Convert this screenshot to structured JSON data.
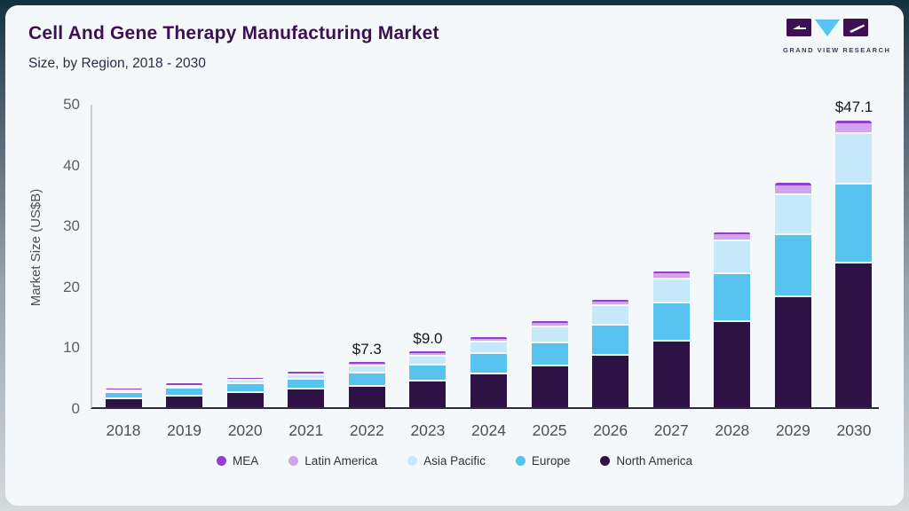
{
  "page": {
    "title": "Cell And Gene Therapy Manufacturing Market",
    "subtitle": "Size, by Region, 2018 - 2030",
    "logo_text": "GRAND VIEW RESEARCH"
  },
  "colors": {
    "card_bg": "#f5f8fb",
    "title": "#3c1053",
    "subtitle": "#2f2947",
    "axis_tick": "#5a5f66",
    "x_label": "#4c5157",
    "baseline": "#2c2c36",
    "y_axis_line": "#c9cfd7",
    "annotation": "#15151f",
    "legend_text": "#2d323b",
    "logo_purple": "#3c1053",
    "logo_blue": "#56c6f0"
  },
  "chart_data": {
    "type": "bar",
    "stacked": true,
    "title": "Cell And Gene Therapy Manufacturing Market Size, by Region, 2018 - 2030",
    "xlabel": "",
    "ylabel": "Market Size (US$B)",
    "ylim": [
      0,
      50
    ],
    "yticks": [
      0,
      10,
      20,
      30,
      40,
      50
    ],
    "grid": false,
    "legend_position": "bottom",
    "categories": [
      "2018",
      "2019",
      "2020",
      "2021",
      "2022",
      "2023",
      "2024",
      "2025",
      "2026",
      "2027",
      "2028",
      "2029",
      "2030"
    ],
    "series": [
      {
        "name": "North America",
        "color": "#2e1245",
        "values": [
          1.5,
          1.9,
          2.5,
          3.0,
          3.5,
          4.4,
          5.5,
          6.8,
          8.6,
          11.0,
          14.1,
          18.2,
          23.7
        ]
      },
      {
        "name": "Europe",
        "color": "#57c4f0",
        "values": [
          1.0,
          1.3,
          1.4,
          1.6,
          2.2,
          2.6,
          3.4,
          3.9,
          4.9,
          6.2,
          7.9,
          10.2,
          13.1
        ]
      },
      {
        "name": "Asia Pacific",
        "color": "#c6e9f9",
        "values": [
          0.25,
          0.35,
          0.55,
          0.85,
          1.15,
          1.5,
          1.85,
          2.6,
          3.2,
          4.0,
          5.4,
          6.6,
          8.2
        ]
      },
      {
        "name": "Latin America",
        "color": "#d2a4e9",
        "values": [
          0.06,
          0.08,
          0.1,
          0.15,
          0.32,
          0.38,
          0.42,
          0.55,
          0.6,
          0.8,
          1.0,
          1.5,
          1.6
        ]
      },
      {
        "name": "MEA",
        "color": "#9240cc",
        "values": [
          0.04,
          0.04,
          0.05,
          0.06,
          0.13,
          0.12,
          0.13,
          0.15,
          0.2,
          0.3,
          0.3,
          0.4,
          0.5
        ]
      }
    ],
    "totals": [
      2.85,
      3.67,
      4.6,
      5.66,
      7.3,
      9.0,
      11.3,
      14.0,
      17.5,
      22.3,
      28.7,
      36.9,
      47.1
    ],
    "annotations": [
      {
        "category": "2022",
        "text": "$7.3"
      },
      {
        "category": "2023",
        "text": "$9.0"
      },
      {
        "category": "2030",
        "text": "$47.1"
      }
    ],
    "legend": [
      {
        "label": "MEA",
        "color": "#9240cc"
      },
      {
        "label": "Latin America",
        "color": "#d2a4e9"
      },
      {
        "label": "Asia Pacific",
        "color": "#c6e9f9"
      },
      {
        "label": "Europe",
        "color": "#57c4f0"
      },
      {
        "label": "North America",
        "color": "#2e1245"
      }
    ]
  }
}
